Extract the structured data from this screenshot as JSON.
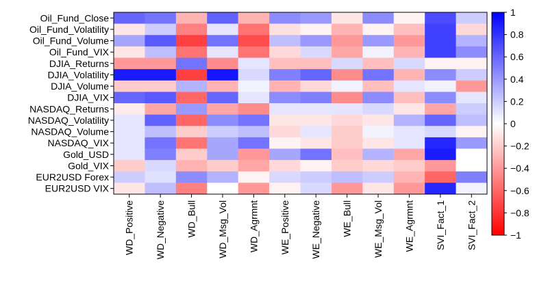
{
  "chart_data": {
    "type": "heatmap",
    "title": "",
    "xlabel": "",
    "ylabel": "",
    "rows": [
      "Oil_Fund_Close",
      "Oil_Fund_Volatility",
      "Oil_Fund_Volume",
      "Oil_Fund_VIX",
      "DJIA_Returns",
      "DJIA_Volatility",
      "DJIA_Volume",
      "DJIA_VIX",
      "NASDAQ_Returns",
      "NASDAQ_Volatility",
      "NASDAQ_Volume",
      "NASDAQ_VIX",
      "Gold_USD",
      "Gold_VIX",
      "EUR2USD Forex",
      "EUR2USD VIX"
    ],
    "columns": [
      "WD_Positive",
      "WD_Negative",
      "WD_Bull",
      "WD_Msg_Vol",
      "WD_Agrmnt",
      "WE_Positive",
      "WE_Negative",
      "WE_Bull",
      "WE_Msg_Vol",
      "WE_Agrmnt",
      "SVI_Fact_1",
      "SVI_Fact_2"
    ],
    "values": [
      [
        0.6,
        0.55,
        -0.3,
        0.62,
        -0.3,
        0.45,
        0.4,
        -0.1,
        0.45,
        -0.05,
        0.7,
        0.2
      ],
      [
        -0.1,
        0.2,
        -0.5,
        0.1,
        -0.55,
        -0.12,
        -0.05,
        -0.3,
        -0.05,
        -0.25,
        0.75,
        -0.15
      ],
      [
        0.35,
        0.65,
        -0.75,
        0.55,
        -0.7,
        0.25,
        0.4,
        -0.4,
        0.4,
        -0.4,
        0.75,
        0.3
      ],
      [
        -0.1,
        0.25,
        -0.55,
        0.1,
        -0.55,
        -0.15,
        0.15,
        -0.35,
        0.05,
        -0.3,
        0.75,
        0.45
      ],
      [
        -0.4,
        -0.4,
        0.55,
        -0.45,
        0.1,
        -0.25,
        -0.25,
        0.15,
        -0.25,
        0.15,
        -0.05,
        -0.05
      ],
      [
        0.9,
        0.9,
        -0.75,
        0.92,
        0.15,
        0.5,
        0.6,
        -0.45,
        0.55,
        -0.3,
        0.45,
        0.2
      ],
      [
        -0.2,
        -0.2,
        0.3,
        -0.3,
        0.05,
        -0.3,
        -0.15,
        0.05,
        -0.25,
        0.1,
        0.05,
        -0.4
      ],
      [
        0.6,
        0.65,
        -0.6,
        0.6,
        0.1,
        0.45,
        0.5,
        -0.45,
        0.45,
        -0.25,
        0.45,
        0.1
      ],
      [
        -0.08,
        -0.35,
        0.4,
        -0.35,
        -0.45,
        0.1,
        0.1,
        0.1,
        0.15,
        -0.1,
        -0.35,
        0.2
      ],
      [
        0.1,
        0.62,
        -0.6,
        0.45,
        0.55,
        -0.1,
        -0.1,
        -0.15,
        -0.1,
        0.3,
        0.6,
        0.25
      ],
      [
        0.1,
        0.25,
        -0.2,
        0.2,
        0.25,
        -0.15,
        0.1,
        -0.2,
        0.05,
        0.1,
        0.15,
        -0.05
      ],
      [
        0.1,
        0.55,
        -0.55,
        0.35,
        0.55,
        -0.05,
        -0.1,
        -0.2,
        -0.1,
        0.1,
        0.85,
        0.4
      ],
      [
        0.1,
        0.5,
        -0.2,
        0.35,
        -0.4,
        0.35,
        0.55,
        -0.25,
        0.3,
        -0.35,
        0.9,
        0.0
      ],
      [
        -0.2,
        0.15,
        -0.3,
        -0.2,
        -0.35,
        -0.15,
        -0.05,
        -0.2,
        -0.15,
        -0.2,
        -0.4,
        0.0
      ],
      [
        0.2,
        0.12,
        0.45,
        0.3,
        -0.05,
        0.15,
        0.2,
        0.25,
        0.2,
        -0.3,
        -0.6,
        0.5
      ],
      [
        -0.1,
        0.25,
        -0.5,
        0.0,
        -0.4,
        -0.05,
        0.15,
        -0.4,
        -0.1,
        -0.4,
        0.85,
        0.05
      ]
    ],
    "color_scale": {
      "min": -1,
      "max": 1,
      "low_color": "#FF0000",
      "mid_color": "#FFFFFF",
      "high_color": "#0000FF",
      "ticks": [
        "1",
        "0.8",
        "0.6",
        "0.4",
        "0.2",
        "0",
        "−0.2",
        "−0.4",
        "−0.6",
        "−0.8",
        "−1"
      ],
      "tick_values": [
        1,
        0.8,
        0.6,
        0.4,
        0.2,
        0,
        -0.2,
        -0.4,
        -0.6,
        -0.8,
        -1
      ]
    },
    "legend_position": "right"
  }
}
